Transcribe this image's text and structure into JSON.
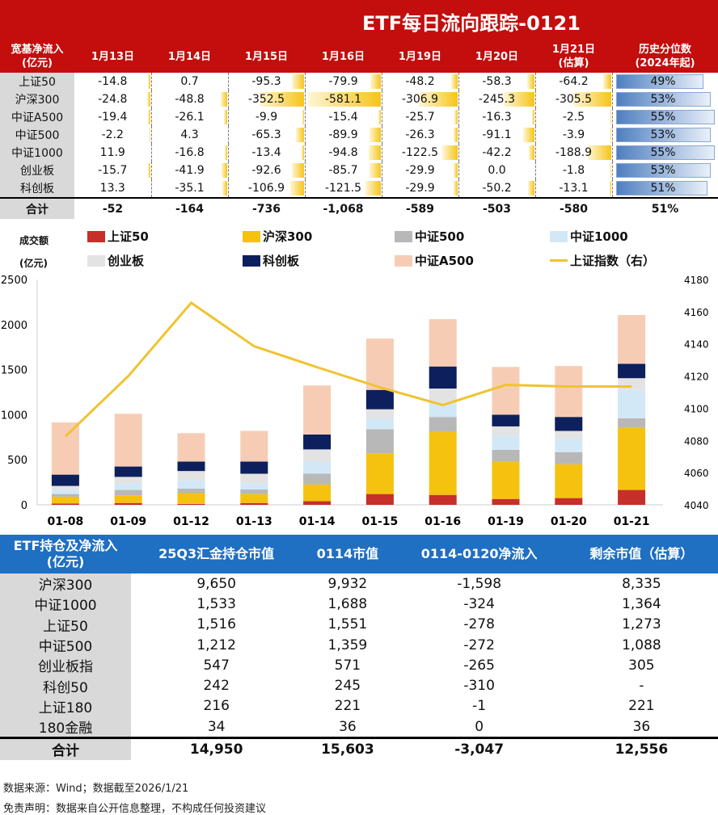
{
  "title": "ETF每日流向跟踪-0121",
  "flow_table": {
    "corner": [
      "宽基净流入",
      "(亿元)"
    ],
    "columns": [
      "1月13日",
      "1月14日",
      "1月15日",
      "1月16日",
      "1月19日",
      "1月20日",
      "1月21日\n(估算)"
    ],
    "pct_header": "历史分位数\n(2024年起)",
    "rows": [
      {
        "label": "上证50",
        "values": [
          "-14.8",
          "0.7",
          "-95.3",
          "-79.9",
          "-48.2",
          "-58.3",
          "-64.2"
        ],
        "pct": "49%"
      },
      {
        "label": "沪深300",
        "values": [
          "-24.8",
          "-48.8",
          "-352.5",
          "-581.1",
          "-306.9",
          "-245.3",
          "-305.5"
        ],
        "pct": "53%"
      },
      {
        "label": "中证A500",
        "values": [
          "-19.4",
          "-26.1",
          "-9.9",
          "-15.4",
          "-25.7",
          "-16.3",
          "-2.5"
        ],
        "pct": "55%"
      },
      {
        "label": "中证500",
        "values": [
          "-2.2",
          "4.3",
          "-65.3",
          "-89.9",
          "-26.3",
          "-91.1",
          "-3.9"
        ],
        "pct": "53%"
      },
      {
        "label": "中证1000",
        "values": [
          "11.9",
          "-16.8",
          "-13.4",
          "-94.8",
          "-122.5",
          "-42.2",
          "-188.9"
        ],
        "pct": "55%"
      },
      {
        "label": "创业板",
        "values": [
          "-15.7",
          "-41.9",
          "-92.6",
          "-85.7",
          "-29.9",
          "0.0",
          "-1.8"
        ],
        "pct": "53%"
      },
      {
        "label": "科创板",
        "values": [
          "13.3",
          "-35.1",
          "-106.9",
          "-121.5",
          "-29.9",
          "-50.2",
          "-13.1"
        ],
        "pct": "51%"
      }
    ],
    "total": {
      "label": "合计",
      "values": [
        "-52",
        "-164",
        "-736",
        "-1,068",
        "-589",
        "-503",
        "-580"
      ],
      "pct": "51%"
    }
  },
  "chart_data": {
    "type": "bar",
    "stacked": true,
    "ylabel": "成交额\n(亿元)",
    "categories": [
      "01-08",
      "01-09",
      "01-12",
      "01-13",
      "01-14",
      "01-15",
      "01-16",
      "01-19",
      "01-20",
      "01-21"
    ],
    "ylim": [
      0,
      2500
    ],
    "yticks": [
      "0",
      "500",
      "1000",
      "1500",
      "2000",
      "2500"
    ],
    "y2lim": [
      4040,
      4180
    ],
    "y2ticks": [
      "4040",
      "4060",
      "4080",
      "4100",
      "4120",
      "4140",
      "4160",
      "4180"
    ],
    "legend_position": "top",
    "series": [
      {
        "name": "上证50",
        "color": "#c62f2a",
        "values": [
          15,
          20,
          10,
          20,
          40,
          120,
          110,
          65,
          75,
          165
        ]
      },
      {
        "name": "沪深300",
        "color": "#f5c20f",
        "values": [
          75,
          85,
          120,
          100,
          185,
          450,
          700,
          415,
          375,
          690
        ]
      },
      {
        "name": "中证500",
        "color": "#b8b8b8",
        "values": [
          30,
          60,
          50,
          50,
          120,
          270,
          165,
          130,
          135,
          105
        ]
      },
      {
        "name": "中证1000",
        "color": "#d3e8f7",
        "values": [
          45,
          75,
          90,
          70,
          135,
          120,
          150,
          155,
          150,
          315
        ]
      },
      {
        "name": "创业板",
        "color": "#e3e3e3",
        "values": [
          45,
          70,
          105,
          105,
          135,
          100,
          165,
          105,
          85,
          130
        ]
      },
      {
        "name": "科创板",
        "color": "#0d1f5c",
        "values": [
          125,
          115,
          105,
          135,
          165,
          215,
          245,
          130,
          155,
          160
        ]
      },
      {
        "name": "中证A500",
        "color": "#f6cdb4",
        "values": [
          580,
          585,
          315,
          340,
          545,
          570,
          525,
          530,
          565,
          540
        ]
      }
    ],
    "line": {
      "name": "上证指数（右）",
      "color": "#f0c330",
      "axis": "right",
      "values": [
        4082.5,
        4120,
        4165.5,
        4138.5,
        4125.5,
        4113,
        4102,
        4114.5,
        4113.5,
        4113.5
      ]
    }
  },
  "holdings_table": {
    "corner": "ETF持仓及净流入\n(亿元)",
    "columns": [
      "25Q3汇金持仓市值",
      "0114市值",
      "0114-0120净流入",
      "剩余市值（估算）"
    ],
    "rows": [
      {
        "label": "沪深300",
        "values": [
          "9,650",
          "9,932",
          "-1,598",
          "8,335"
        ]
      },
      {
        "label": "中证1000",
        "values": [
          "1,533",
          "1,688",
          "-324",
          "1,364"
        ]
      },
      {
        "label": "上证50",
        "values": [
          "1,516",
          "1,551",
          "-278",
          "1,273"
        ]
      },
      {
        "label": "中证500",
        "values": [
          "1,212",
          "1,359",
          "-272",
          "1,088"
        ]
      },
      {
        "label": "创业板指",
        "values": [
          "547",
          "571",
          "-265",
          "305"
        ]
      },
      {
        "label": "科创50",
        "values": [
          "242",
          "245",
          "-310",
          "-"
        ]
      },
      {
        "label": "上证180",
        "values": [
          "216",
          "221",
          "-1",
          "221"
        ]
      },
      {
        "label": "180金融",
        "values": [
          "34",
          "36",
          "0",
          "36"
        ]
      }
    ],
    "total": {
      "label": "合计",
      "values": [
        "14,950",
        "15,603",
        "-3,047",
        "12,556"
      ]
    }
  },
  "footer": {
    "source": "数据来源：Wind；数据截至2026/1/21",
    "disclaimer": "免责声明：数据来自公开信息整理，不构成任何投资建议"
  }
}
